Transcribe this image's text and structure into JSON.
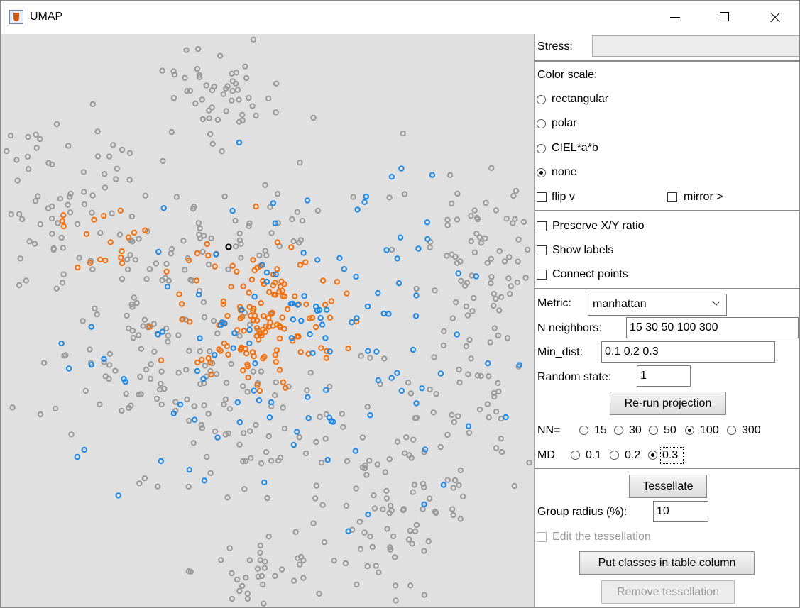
{
  "window": {
    "title": "UMAP"
  },
  "stress": {
    "label": "Stress:",
    "value": ""
  },
  "color_scale": {
    "label": "Color scale:",
    "options": [
      "rectangular",
      "polar",
      "CIEL*a*b",
      "none"
    ],
    "selected": "none"
  },
  "flip": {
    "label": "flip v",
    "checked": false
  },
  "mirror": {
    "label": "mirror >",
    "checked": false
  },
  "options": {
    "preserve": {
      "label": "Preserve X/Y ratio",
      "checked": false
    },
    "show_labels": {
      "label": "Show labels",
      "checked": false
    },
    "connect": {
      "label": "Connect points",
      "checked": false
    }
  },
  "metric": {
    "label": "Metric:",
    "value": "manhattan"
  },
  "n_neighbors": {
    "label": "N neighbors:",
    "value": "15 30 50 100 300"
  },
  "min_dist": {
    "label": "Min_dist:",
    "value": "0.1 0.2 0.3"
  },
  "random_state": {
    "label": "Random state:",
    "value": "1"
  },
  "rerun": {
    "label": "Re-run projection"
  },
  "nn": {
    "label": "NN=",
    "options": [
      "15",
      "30",
      "50",
      "100",
      "300"
    ],
    "selected": "100"
  },
  "md": {
    "label": "MD",
    "options": [
      "0.1",
      "0.2",
      "0.3"
    ],
    "selected": "0.3"
  },
  "tessellate": {
    "label": "Tessellate"
  },
  "group_radius": {
    "label": "Group radius (%):",
    "value": "10"
  },
  "edit_tess": {
    "label": "Edit the tessellation",
    "checked": false
  },
  "put_classes": {
    "label": "Put classes in table column"
  },
  "remove_tess": {
    "label": "Remove tessellation"
  },
  "colors": {
    "gray": "#9a9a9a",
    "blue": "#1e88e5",
    "orange": "#f07010",
    "selected": "#000000",
    "plot_bg": "#e0e0e0"
  }
}
